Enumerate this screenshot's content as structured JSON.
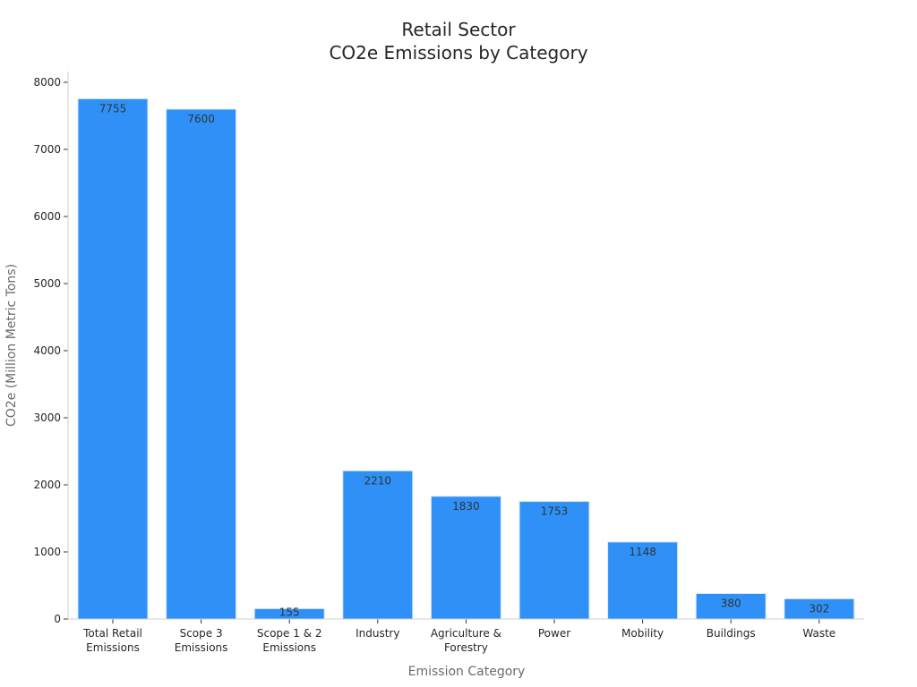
{
  "chart_data": {
    "type": "bar",
    "title_lines": [
      "Retail Sector",
      "CO2e Emissions by Category"
    ],
    "xlabel": "Emission Category",
    "ylabel": "CO2e (Million Metric Tons)",
    "categories": [
      [
        "Total Retail",
        "Emissions"
      ],
      [
        "Scope 3",
        "Emissions"
      ],
      [
        "Scope 1 & 2",
        "Emissions"
      ],
      [
        "Industry"
      ],
      [
        "Agriculture &",
        "Forestry"
      ],
      [
        "Power"
      ],
      [
        "Mobility"
      ],
      [
        "Buildings"
      ],
      [
        "Waste"
      ]
    ],
    "values": [
      7755,
      7600,
      155,
      2210,
      1830,
      1753,
      1148,
      380,
      302
    ],
    "value_labels": [
      "7755",
      "7600",
      "155",
      "2210",
      "1830",
      "1753",
      "1148",
      "380",
      "302"
    ],
    "ylim": [
      0,
      8200
    ],
    "yticks": [
      0,
      1000,
      2000,
      3000,
      4000,
      5000,
      6000,
      7000,
      8000
    ],
    "grid": false,
    "bar_color": "#2f91f7",
    "legend": "none"
  }
}
